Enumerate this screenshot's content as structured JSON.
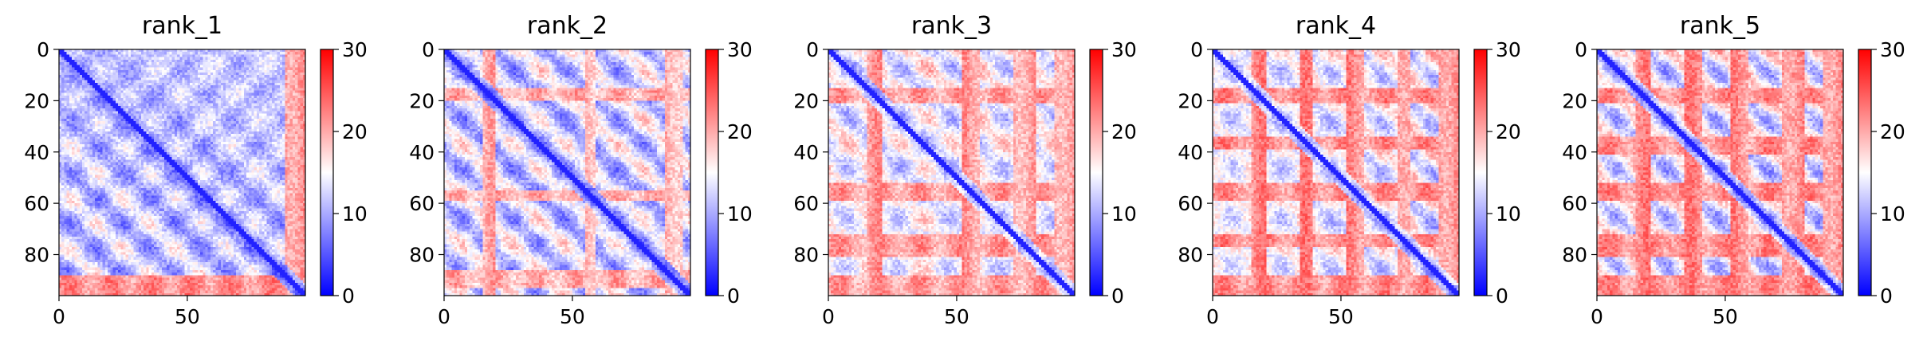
{
  "figure": {
    "background": "#ffffff"
  },
  "colormap": {
    "name": "bwr",
    "low_color": "#0000ff",
    "mid_color": "#ffffff",
    "high_color": "#ff0000",
    "vmin": 0,
    "vmax": 30
  },
  "chart_data": [
    {
      "type": "heatmap",
      "title": "rank_1",
      "xlabel": "",
      "ylabel": "",
      "matrix_size": 96,
      "xlim": [
        0,
        96
      ],
      "ylim": [
        96,
        0
      ],
      "x_ticks": [
        "0",
        "50"
      ],
      "x_tick_values": [
        0,
        50
      ],
      "y_ticks": [
        "0",
        "20",
        "40",
        "60",
        "80"
      ],
      "y_tick_values": [
        0,
        20,
        40,
        60,
        80
      ],
      "colorbar": {
        "range": [
          0,
          30
        ],
        "ticks": [
          "0",
          "10",
          "20",
          "30"
        ],
        "tick_values": [
          0,
          10,
          20,
          30
        ]
      },
      "pattern": {
        "diagonal_value": 2,
        "period": 21,
        "offdiag_base": 10,
        "offdiag_amp": 5,
        "red_bands": [
          [
            88,
            95
          ]
        ],
        "red_band_value": 24
      }
    },
    {
      "type": "heatmap",
      "title": "rank_2",
      "xlabel": "",
      "ylabel": "",
      "matrix_size": 96,
      "xlim": [
        0,
        96
      ],
      "ylim": [
        96,
        0
      ],
      "x_ticks": [
        "0",
        "50"
      ],
      "x_tick_values": [
        0,
        50
      ],
      "y_ticks": [
        "0",
        "20",
        "40",
        "60",
        "80"
      ],
      "y_tick_values": [
        0,
        20,
        40,
        60,
        80
      ],
      "colorbar": {
        "range": [
          0,
          30
        ],
        "ticks": [
          "0",
          "10",
          "20",
          "30"
        ],
        "tick_values": [
          0,
          10,
          20,
          30
        ]
      },
      "pattern": {
        "diagonal_value": 2,
        "period": 20,
        "offdiag_base": 11,
        "offdiag_amp": 6,
        "red_bands": [
          [
            15,
            19
          ],
          [
            55,
            58
          ],
          [
            86,
            92
          ]
        ],
        "red_band_value": 22
      }
    },
    {
      "type": "heatmap",
      "title": "rank_3",
      "xlabel": "",
      "ylabel": "",
      "matrix_size": 96,
      "xlim": [
        0,
        96
      ],
      "ylim": [
        96,
        0
      ],
      "x_ticks": [
        "0",
        "50"
      ],
      "x_tick_values": [
        0,
        50
      ],
      "y_ticks": [
        "0",
        "20",
        "40",
        "60",
        "80"
      ],
      "y_tick_values": [
        0,
        20,
        40,
        60,
        80
      ],
      "colorbar": {
        "range": [
          0,
          30
        ],
        "ticks": [
          "0",
          "10",
          "20",
          "30"
        ],
        "tick_values": [
          0,
          10,
          20,
          30
        ]
      },
      "pattern": {
        "diagonal_value": 2,
        "period": 20,
        "offdiag_base": 13,
        "offdiag_amp": 7,
        "red_bands": [
          [
            15,
            20
          ],
          [
            52,
            58
          ],
          [
            72,
            80
          ],
          [
            88,
            95
          ]
        ],
        "red_band_value": 23
      }
    },
    {
      "type": "heatmap",
      "title": "rank_4",
      "xlabel": "",
      "ylabel": "",
      "matrix_size": 96,
      "xlim": [
        0,
        96
      ],
      "ylim": [
        96,
        0
      ],
      "x_ticks": [
        "0",
        "50"
      ],
      "x_tick_values": [
        0,
        50
      ],
      "y_ticks": [
        "0",
        "20",
        "40",
        "60",
        "80"
      ],
      "y_tick_values": [
        0,
        20,
        40,
        60,
        80
      ],
      "colorbar": {
        "range": [
          0,
          30
        ],
        "ticks": [
          "0",
          "10",
          "20",
          "30"
        ],
        "tick_values": [
          0,
          10,
          20,
          30
        ]
      },
      "pattern": {
        "diagonal_value": 2,
        "period": 19,
        "offdiag_base": 13,
        "offdiag_amp": 7,
        "red_bands": [
          [
            15,
            20
          ],
          [
            34,
            38
          ],
          [
            52,
            58
          ],
          [
            72,
            76
          ],
          [
            88,
            95
          ]
        ],
        "red_band_value": 24
      }
    },
    {
      "type": "heatmap",
      "title": "rank_5",
      "xlabel": "",
      "ylabel": "",
      "matrix_size": 96,
      "xlim": [
        0,
        96
      ],
      "ylim": [
        96,
        0
      ],
      "x_ticks": [
        "0",
        "50"
      ],
      "x_tick_values": [
        0,
        50
      ],
      "y_ticks": [
        "0",
        "20",
        "40",
        "60",
        "80"
      ],
      "y_tick_values": [
        0,
        20,
        40,
        60,
        80
      ],
      "colorbar": {
        "range": [
          0,
          30
        ],
        "ticks": [
          "0",
          "10",
          "20",
          "30"
        ],
        "tick_values": [
          0,
          10,
          20,
          30
        ]
      },
      "pattern": {
        "diagonal_value": 2,
        "period": 19,
        "offdiag_base": 13,
        "offdiag_amp": 7,
        "red_bands": [
          [
            15,
            20
          ],
          [
            34,
            40
          ],
          [
            52,
            58
          ],
          [
            72,
            80
          ],
          [
            88,
            95
          ]
        ],
        "red_band_value": 24
      }
    }
  ]
}
